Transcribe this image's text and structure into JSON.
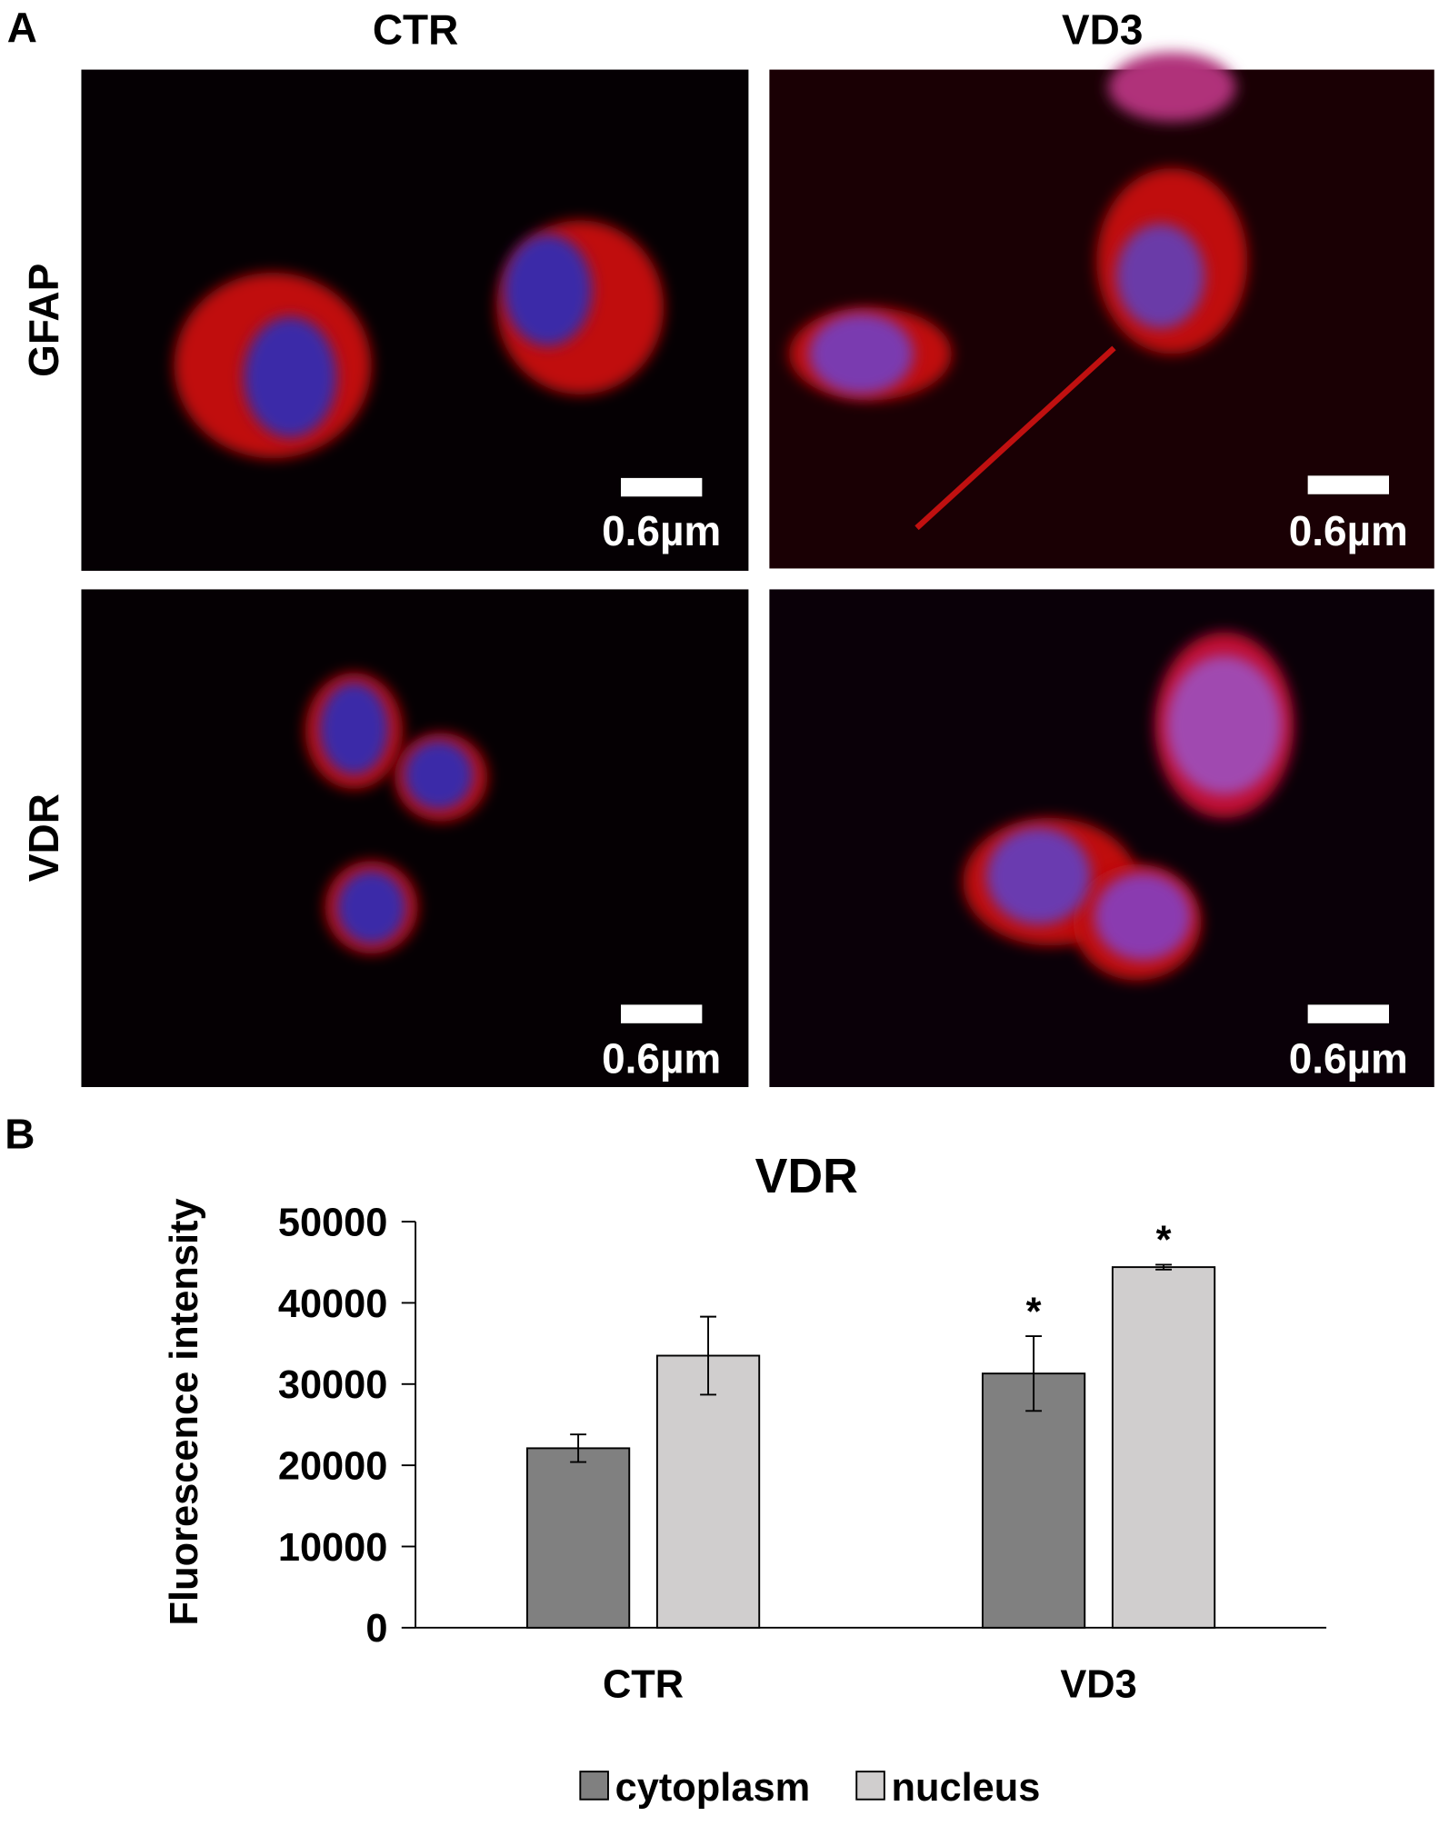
{
  "panel_a": {
    "label": "A",
    "columns": [
      "CTR",
      "VD3"
    ],
    "rows": [
      "GFAP",
      "VDR"
    ],
    "scale_bars": [
      "0.6µm",
      "0.6µm",
      "0.6µm",
      "0.6µm"
    ]
  },
  "panel_b": {
    "label": "B"
  },
  "chart_data": {
    "type": "bar",
    "title": "VDR",
    "y_label": "Fluorescence intensity",
    "categories": [
      "CTR",
      "VD3"
    ],
    "series": [
      {
        "name": "cytoplasm",
        "color": "#808080",
        "values": [
          22100,
          31300
        ],
        "errors": [
          1700,
          4600
        ],
        "significance": [
          null,
          "*"
        ]
      },
      {
        "name": "nucleus",
        "color": "#d0cece",
        "values": [
          33500,
          44400
        ],
        "errors": [
          4800,
          300
        ],
        "significance": [
          null,
          "*"
        ]
      }
    ],
    "ylim": [
      0,
      50000
    ],
    "yticks": [
      0,
      10000,
      20000,
      30000,
      40000,
      50000
    ],
    "grid": false,
    "legend": "bottom"
  }
}
